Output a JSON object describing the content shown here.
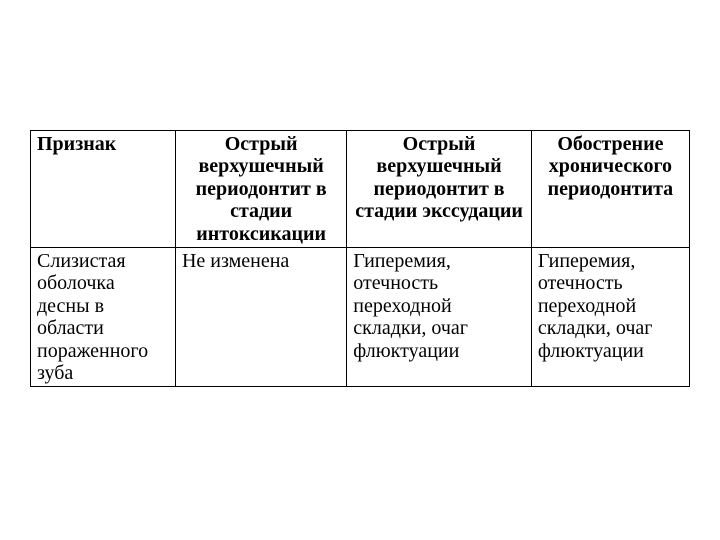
{
  "table": {
    "columns": [
      {
        "text": "Признак",
        "align": "left"
      },
      {
        "text": "Острый верхушечный периодонтит в стадии интоксикации",
        "align": "center"
      },
      {
        "text": "Острый верхушечный периодонтит в стадии экссудации",
        "align": "center"
      },
      {
        "text": "Обострение хронического периодонтита",
        "align": "center"
      }
    ],
    "rows": [
      [
        "Слизис­тая оболочка десны в области поражен­ного зуба",
        "Не изменена",
        "Гиперемия, отечность переходной складки, очаг флюктуации",
        "Гиперемия, отечность переходной складки, очаг флюктуации"
      ]
    ],
    "style": {
      "font_family": "Times New Roman",
      "font_size_pt": 15,
      "border_color": "#000000",
      "background_color": "#ffffff",
      "text_color": "#000000",
      "col_widths_pct": [
        22,
        26,
        28,
        24
      ]
    }
  }
}
